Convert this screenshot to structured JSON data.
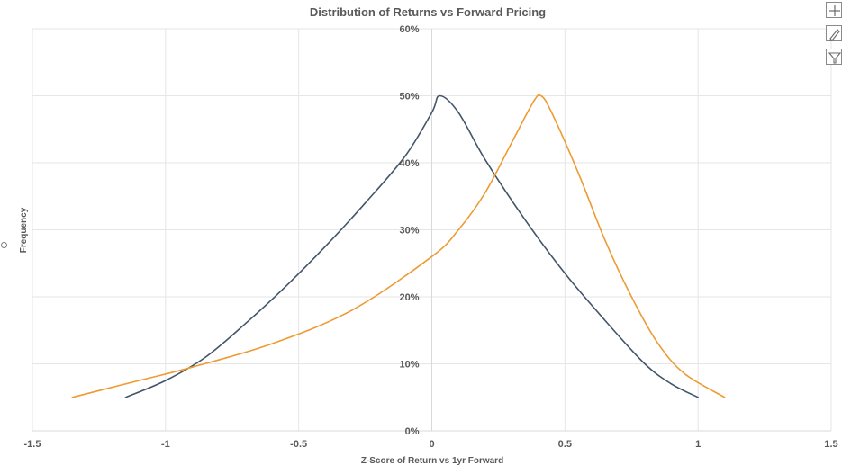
{
  "chart_data": {
    "type": "line",
    "title": "Distribution of Returns vs Forward Pricing",
    "xlabel": "Z-Score of Return vs 1yr Forward",
    "ylabel": "Frequency",
    "xlim": [
      -1.5,
      1.5
    ],
    "ylim": [
      0,
      0.6
    ],
    "x_ticks": [
      -1.5,
      -1,
      -0.5,
      0,
      0.5,
      1,
      1.5
    ],
    "x_tick_labels": [
      "-1.5",
      "-1",
      "-0.5",
      "0",
      "0.5",
      "1",
      "1.5"
    ],
    "y_ticks": [
      0,
      0.1,
      0.2,
      0.3,
      0.4,
      0.5,
      0.6
    ],
    "y_tick_labels": [
      "0%",
      "10%",
      "20%",
      "30%",
      "40%",
      "50%",
      "60%"
    ],
    "grid": true,
    "legend": "none",
    "series": [
      {
        "color": "#44546a",
        "points": [
          [
            -1.15,
            0.05
          ],
          [
            -1.0,
            0.075
          ],
          [
            -0.85,
            0.11
          ],
          [
            -0.7,
            0.16
          ],
          [
            -0.55,
            0.215
          ],
          [
            -0.4,
            0.275
          ],
          [
            -0.25,
            0.34
          ],
          [
            -0.1,
            0.41
          ],
          [
            0.0,
            0.475
          ],
          [
            0.03,
            0.5
          ],
          [
            0.1,
            0.475
          ],
          [
            0.2,
            0.405
          ],
          [
            0.35,
            0.315
          ],
          [
            0.5,
            0.235
          ],
          [
            0.65,
            0.165
          ],
          [
            0.8,
            0.1
          ],
          [
            0.9,
            0.07
          ],
          [
            1.0,
            0.05
          ]
        ]
      },
      {
        "color": "#ed9b33",
        "points": [
          [
            -1.35,
            0.05
          ],
          [
            -1.1,
            0.075
          ],
          [
            -0.9,
            0.095
          ],
          [
            -0.6,
            0.13
          ],
          [
            -0.3,
            0.18
          ],
          [
            0.0,
            0.26
          ],
          [
            0.1,
            0.3
          ],
          [
            0.2,
            0.355
          ],
          [
            0.3,
            0.43
          ],
          [
            0.38,
            0.49
          ],
          [
            0.41,
            0.5
          ],
          [
            0.45,
            0.475
          ],
          [
            0.55,
            0.385
          ],
          [
            0.65,
            0.285
          ],
          [
            0.75,
            0.2
          ],
          [
            0.85,
            0.13
          ],
          [
            0.95,
            0.085
          ],
          [
            1.1,
            0.05
          ]
        ]
      }
    ]
  },
  "chart_buttons": [
    {
      "name": "chart-elements-button",
      "icon": "plus-icon"
    },
    {
      "name": "chart-styles-button",
      "icon": "paintbrush-icon"
    },
    {
      "name": "chart-filters-button",
      "icon": "funnel-icon"
    }
  ]
}
